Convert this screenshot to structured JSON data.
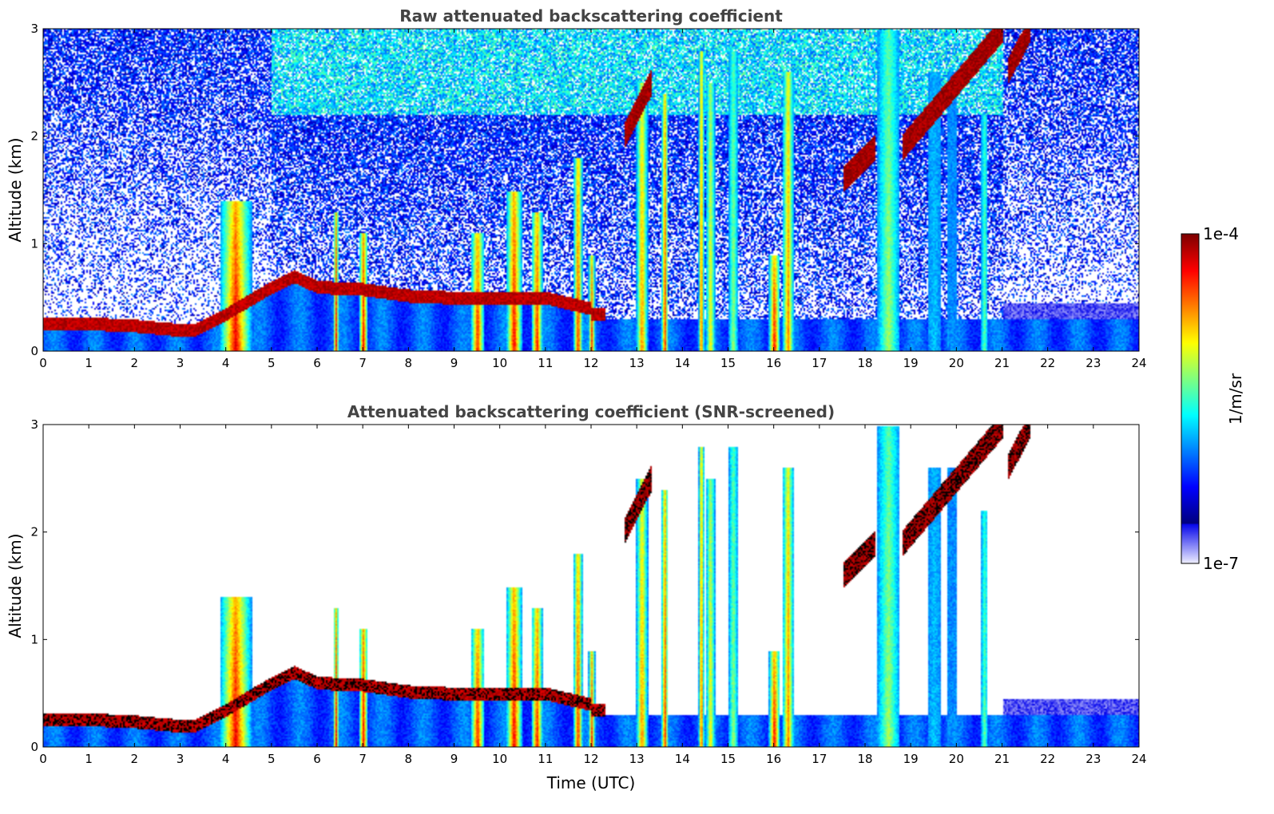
{
  "chart_data": [
    {
      "type": "heatmap",
      "title": "Raw attenuated backscattering coefficient",
      "xlabel": "",
      "ylabel": "Altitude (km)",
      "xlim": [
        0,
        24
      ],
      "ylim": [
        0,
        3
      ],
      "x_ticks": [
        "0",
        "1",
        "2",
        "3",
        "4",
        "5",
        "6",
        "7",
        "8",
        "9",
        "10",
        "11",
        "12",
        "13",
        "14",
        "15",
        "16",
        "17",
        "18",
        "19",
        "20",
        "21",
        "22",
        "23",
        "24"
      ],
      "y_ticks": [
        "0",
        "1",
        "2",
        "3"
      ],
      "screened": false
    },
    {
      "type": "heatmap",
      "title": "Attenuated backscattering coefficient (SNR-screened)",
      "xlabel": "Time (UTC)",
      "ylabel": "Altitude (km)",
      "xlim": [
        0,
        24
      ],
      "ylim": [
        0,
        3
      ],
      "x_ticks": [
        "0",
        "1",
        "2",
        "3",
        "4",
        "5",
        "6",
        "7",
        "8",
        "9",
        "10",
        "11",
        "12",
        "13",
        "14",
        "15",
        "16",
        "17",
        "18",
        "19",
        "20",
        "21",
        "22",
        "23",
        "24"
      ],
      "y_ticks": [
        "0",
        "1",
        "2",
        "3"
      ],
      "screened": true
    }
  ],
  "colorbar": {
    "label": "1/m/sr",
    "max_label": "1e-4",
    "min_label": "1e-7",
    "colormap": "jet-with-white-low-end",
    "scale": "log"
  },
  "features": {
    "boundary_layer": [
      [
        0,
        0.26
      ],
      [
        1,
        0.26
      ],
      [
        2,
        0.24
      ],
      [
        3,
        0.2
      ],
      [
        3.3,
        0.2
      ],
      [
        4,
        0.35
      ],
      [
        5,
        0.6
      ],
      [
        5.5,
        0.7
      ],
      [
        6,
        0.6
      ],
      [
        7,
        0.58
      ],
      [
        8,
        0.52
      ],
      [
        9,
        0.5
      ],
      [
        10,
        0.5
      ],
      [
        11,
        0.5
      ],
      [
        12,
        0.4
      ]
    ],
    "plumes": [
      {
        "x": 4.2,
        "top": 1.4,
        "w": 0.7,
        "v": 0.92
      },
      {
        "x": 6.4,
        "top": 1.3,
        "w": 0.12,
        "v": 0.9
      },
      {
        "x": 7.0,
        "top": 1.1,
        "w": 0.2,
        "v": 0.92
      },
      {
        "x": 9.5,
        "top": 1.1,
        "w": 0.3,
        "v": 0.9
      },
      {
        "x": 10.3,
        "top": 1.5,
        "w": 0.35,
        "v": 0.92
      },
      {
        "x": 10.8,
        "top": 1.3,
        "w": 0.25,
        "v": 0.9
      },
      {
        "x": 11.7,
        "top": 1.8,
        "w": 0.2,
        "v": 0.9
      },
      {
        "x": 12.0,
        "top": 0.9,
        "w": 0.15,
        "v": 0.85
      },
      {
        "x": 13.1,
        "top": 2.5,
        "w": 0.25,
        "v": 0.8
      },
      {
        "x": 13.6,
        "top": 2.4,
        "w": 0.15,
        "v": 0.9
      },
      {
        "x": 14.4,
        "top": 2.8,
        "w": 0.12,
        "v": 0.88
      },
      {
        "x": 14.6,
        "top": 2.5,
        "w": 0.2,
        "v": 0.7
      },
      {
        "x": 15.1,
        "top": 2.8,
        "w": 0.2,
        "v": 0.6
      },
      {
        "x": 16.0,
        "top": 0.9,
        "w": 0.25,
        "v": 0.92
      },
      {
        "x": 16.3,
        "top": 2.6,
        "w": 0.25,
        "v": 0.8
      },
      {
        "x": 18.5,
        "top": 3.0,
        "w": 0.5,
        "v": 0.6
      },
      {
        "x": 19.5,
        "top": 2.6,
        "w": 0.3,
        "v": 0.4
      },
      {
        "x": 19.9,
        "top": 2.6,
        "w": 0.2,
        "v": 0.35
      },
      {
        "x": 20.6,
        "top": 2.2,
        "w": 0.15,
        "v": 0.55
      }
    ],
    "cirrus": [
      {
        "x0": 12.7,
        "x1": 13.3,
        "y0": 2.0,
        "y1": 2.5
      },
      {
        "x0": 17.5,
        "x1": 18.2,
        "y0": 1.6,
        "y1": 1.9
      },
      {
        "x0": 18.8,
        "x1": 21.0,
        "y0": 1.9,
        "y1": 3.0
      },
      {
        "x0": 21.1,
        "x1": 21.6,
        "y0": 2.6,
        "y1": 3.0
      }
    ]
  }
}
